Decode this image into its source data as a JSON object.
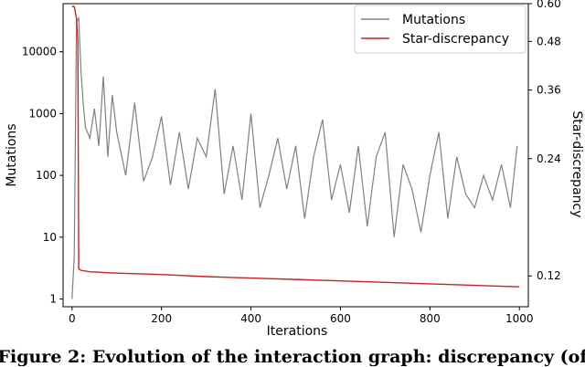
{
  "caption": "Figure 2: Evolution of the interaction graph: discrepancy (of",
  "chart_data": {
    "type": "line",
    "xlabel": "Iterations",
    "ylabel_left": "Mutations",
    "ylabel_right": "Star-discrepancy",
    "left_scale": "log",
    "left_ylim": [
      0.75,
      60000
    ],
    "right_ylim": [
      0.1,
      0.6
    ],
    "right_scale": "log",
    "xlim": [
      -20,
      1020
    ],
    "x_ticks": [
      0,
      200,
      400,
      600,
      800,
      1000
    ],
    "x_tick_labels": [
      "0",
      "200",
      "400",
      "600",
      "800",
      "1000"
    ],
    "left_ticks": [
      1,
      10,
      100,
      1000,
      10000
    ],
    "left_tick_labels": [
      "1",
      "10",
      "100",
      "1000",
      "10000"
    ],
    "right_ticks": [
      0.12,
      0.24,
      0.36,
      0.48,
      0.6
    ],
    "right_tick_labels": [
      "0.12",
      "0.24",
      "0.36",
      "0.48",
      "0.60"
    ],
    "legend": {
      "position": "top-right",
      "entries": [
        "Mutations",
        "Star-discrepancy"
      ]
    },
    "colors": {
      "mutations": "#808080",
      "discrepancy": "#cc2222"
    },
    "series": [
      {
        "name": "Mutations",
        "axis": "left",
        "x": [
          0,
          5,
          10,
          15,
          20,
          25,
          30,
          40,
          50,
          60,
          70,
          80,
          90,
          100,
          120,
          140,
          160,
          180,
          200,
          220,
          240,
          260,
          280,
          300,
          320,
          340,
          360,
          380,
          400,
          420,
          440,
          460,
          480,
          500,
          520,
          540,
          560,
          580,
          600,
          620,
          640,
          660,
          680,
          700,
          720,
          740,
          760,
          780,
          800,
          820,
          840,
          860,
          880,
          900,
          920,
          940,
          960,
          980,
          995
        ],
        "y": [
          1,
          5,
          30000,
          35000,
          5000,
          1500,
          600,
          400,
          1200,
          300,
          4000,
          200,
          2000,
          500,
          100,
          1500,
          80,
          200,
          900,
          70,
          500,
          60,
          400,
          200,
          2500,
          50,
          300,
          40,
          1000,
          30,
          100,
          400,
          60,
          300,
          20,
          200,
          800,
          40,
          150,
          25,
          300,
          15,
          200,
          500,
          10,
          150,
          60,
          12,
          100,
          500,
          20,
          200,
          50,
          30,
          100,
          40,
          150,
          30,
          300
        ]
      },
      {
        "name": "Star-discrepancy",
        "axis": "right",
        "x": [
          0,
          5,
          10,
          13,
          15,
          20,
          40,
          100,
          200,
          300,
          400,
          500,
          600,
          700,
          800,
          900,
          1000
        ],
        "y": [
          0.59,
          0.59,
          0.55,
          0.48,
          0.125,
          0.124,
          0.123,
          0.122,
          0.121,
          0.1195,
          0.1185,
          0.1175,
          0.1165,
          0.1155,
          0.1145,
          0.1135,
          0.1125
        ]
      }
    ]
  }
}
